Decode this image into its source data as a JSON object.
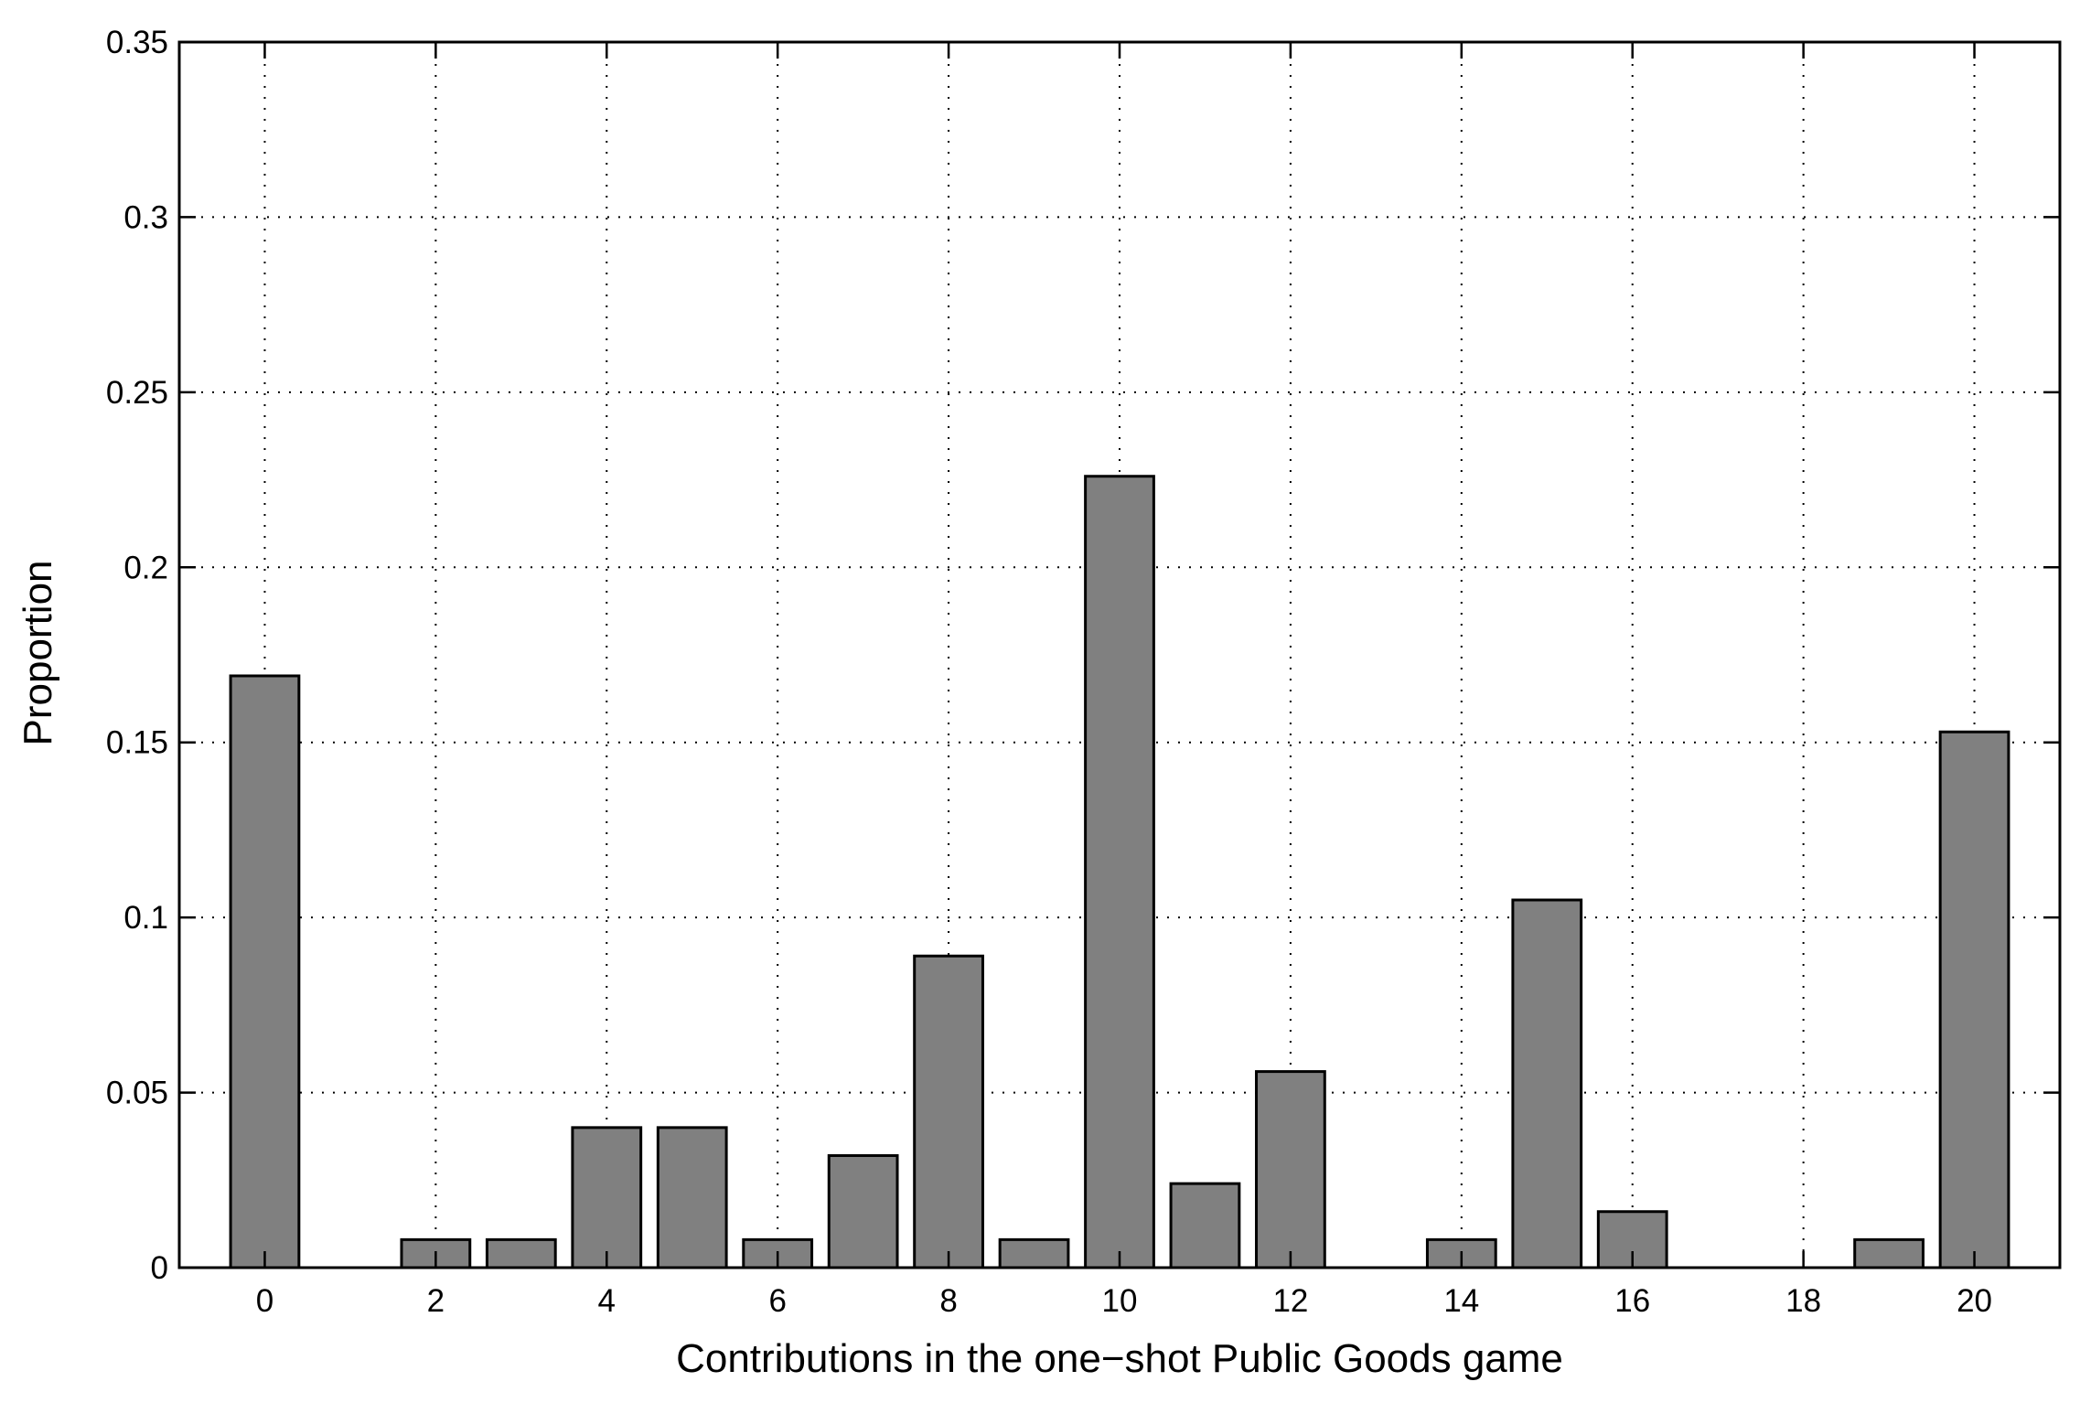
{
  "chart_data": {
    "type": "bar",
    "x": [
      0,
      2,
      3,
      4,
      5,
      6,
      7,
      8,
      9,
      10,
      11,
      12,
      14,
      15,
      16,
      19,
      20
    ],
    "values": [
      0.169,
      0.008,
      0.008,
      0.04,
      0.04,
      0.008,
      0.032,
      0.089,
      0.008,
      0.226,
      0.024,
      0.056,
      0.008,
      0.105,
      0.016,
      0.008,
      0.153
    ],
    "xlabel": "Contributions in the one−shot Public Goods game",
    "ylabel": "Proportion",
    "xlim": [
      -1,
      21
    ],
    "ylim": [
      0,
      0.35
    ],
    "xticks": [
      "0",
      "2",
      "4",
      "6",
      "8",
      "10",
      "12",
      "14",
      "16",
      "18",
      "20"
    ],
    "yticks": [
      "0",
      "0.05",
      "0.1",
      "0.15",
      "0.2",
      "0.25",
      "0.3",
      "0.35"
    ],
    "grid": true,
    "bar_color": "#808080"
  }
}
